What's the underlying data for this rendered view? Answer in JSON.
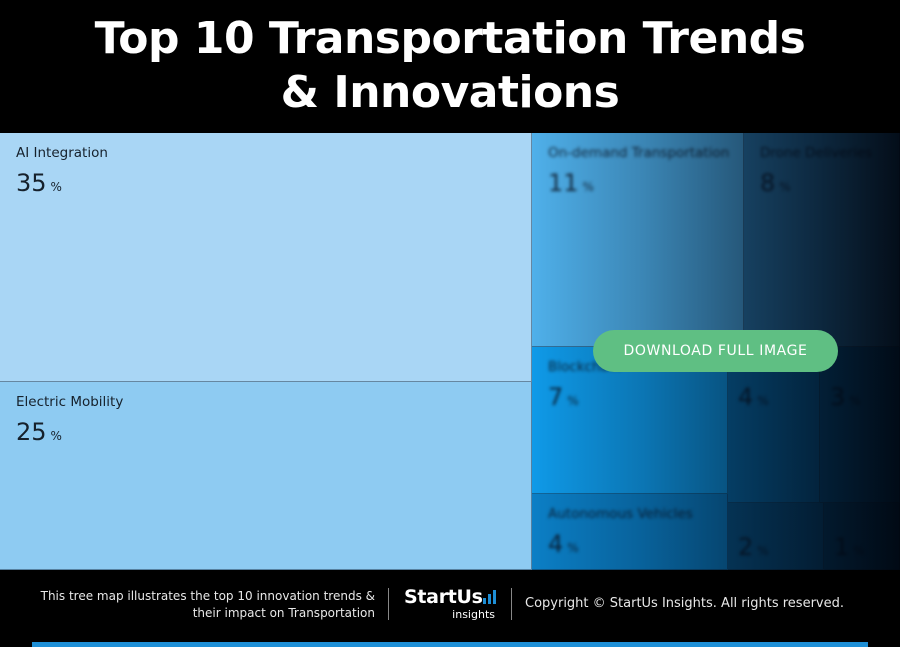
{
  "header": {
    "title_line1": "Top 10 Transportation Trends",
    "title_line2": "& Innovations"
  },
  "chart_data": {
    "type": "treemap",
    "title": "Top 10 Transportation Trends & Innovations",
    "unit": "%",
    "items": [
      {
        "label": "AI Integration",
        "value": 35,
        "color": "#a9d6f5"
      },
      {
        "label": "Electric Mobility",
        "value": 25,
        "color": "#8ecbf2"
      },
      {
        "label": "On-demand Transportation",
        "value": 11,
        "color": "#4fb0ea"
      },
      {
        "label": "Drone Deliveries",
        "value": 8,
        "color": "#2f7fb4"
      },
      {
        "label": "Blockchain",
        "value": 7,
        "color": "#0f9ae8"
      },
      {
        "label": "Autonomous Vehicles",
        "value": 4,
        "color": "#0b7fc6"
      },
      {
        "label": "",
        "value": 4,
        "color": "#0a6fae"
      },
      {
        "label": "",
        "value": 3,
        "color": "#0a5f96"
      },
      {
        "label": "",
        "value": 2,
        "color": "#0a5a8e"
      },
      {
        "label": "",
        "value": 1,
        "color": "#094d7a"
      }
    ]
  },
  "download_button": {
    "label": "DOWNLOAD FULL IMAGE",
    "color": "#5fbf83"
  },
  "footer": {
    "description_line1": "This tree map illustrates the top 10 innovation trends &",
    "description_line2": "their impact on Transportation",
    "logo_brand": "StartUs",
    "logo_sub": "insights",
    "copyright": "Copyright © StartUs Insights. All rights reserved.",
    "accent_color": "#1e8fd6"
  }
}
